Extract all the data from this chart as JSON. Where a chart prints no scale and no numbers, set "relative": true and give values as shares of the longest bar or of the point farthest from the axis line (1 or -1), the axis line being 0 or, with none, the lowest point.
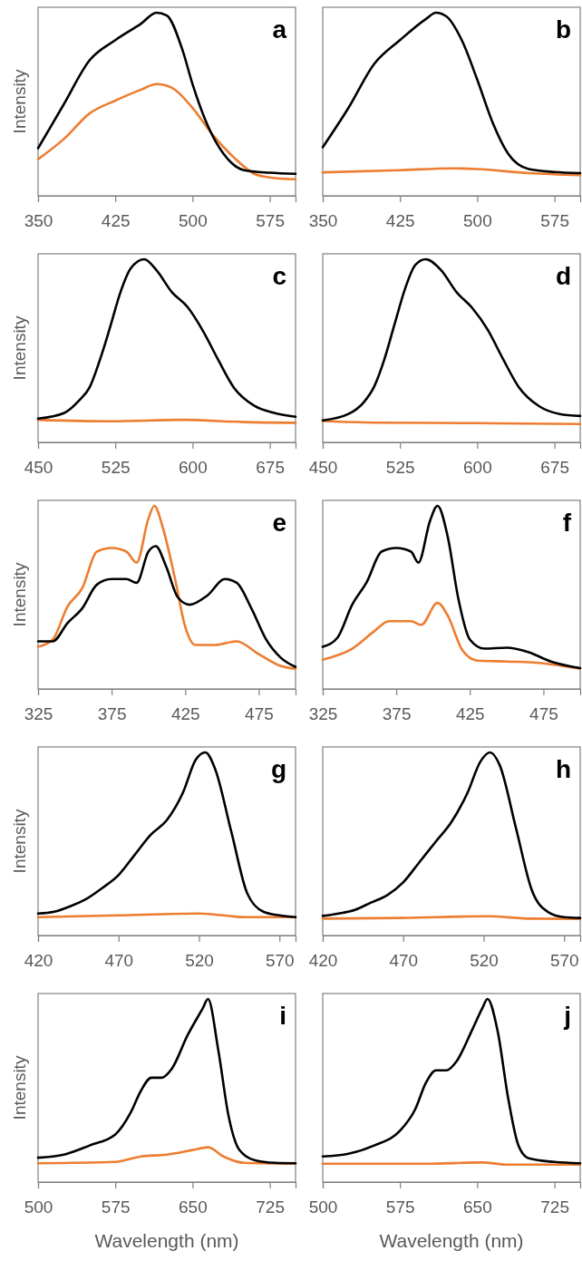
{
  "chart_data": [
    {
      "type": "line",
      "title": "a",
      "ylabel": "Intensity",
      "relative": true,
      "tick_labels": "x",
      "xlim": [
        350,
        600
      ],
      "xticks": [
        350,
        425,
        500,
        575
      ],
      "series": [
        {
          "color": "#000000",
          "x": [
            350,
            375,
            400,
            425,
            450,
            465,
            475,
            490,
            500,
            515,
            530,
            550,
            575,
            600
          ],
          "values": [
            0.26,
            0.5,
            0.74,
            0.85,
            0.94,
            1,
            0.985,
            0.8,
            0.61,
            0.38,
            0.23,
            0.14,
            0.126,
            0.12
          ]
        },
        {
          "color": "#ed7d31",
          "x": [
            350,
            375,
            400,
            425,
            450,
            465,
            480,
            500,
            520,
            540,
            560,
            575,
            600
          ],
          "values": [
            0.2,
            0.31,
            0.45,
            0.52,
            0.58,
            0.61,
            0.59,
            0.48,
            0.33,
            0.21,
            0.12,
            0.1,
            0.09
          ]
        }
      ]
    },
    {
      "type": "line",
      "title": "b",
      "relative": true,
      "tick_labels": "x",
      "xlim": [
        350,
        600
      ],
      "xticks": [
        350,
        425,
        500,
        575
      ],
      "series": [
        {
          "color": "#000000",
          "x": [
            350,
            375,
            400,
            425,
            450,
            460,
            470,
            485,
            500,
            515,
            530,
            550,
            575,
            600
          ],
          "values": [
            0.265,
            0.48,
            0.72,
            0.85,
            0.965,
            1,
            0.98,
            0.85,
            0.635,
            0.4,
            0.23,
            0.146,
            0.13,
            0.124
          ]
        },
        {
          "color": "#ed7d31",
          "x": [
            350,
            425,
            475,
            500,
            550,
            600
          ],
          "values": [
            0.128,
            0.14,
            0.15,
            0.146,
            0.124,
            0.113
          ]
        }
      ]
    },
    {
      "type": "line",
      "title": "c",
      "ylabel": "Intensity",
      "relative": true,
      "tick_labels": "x",
      "xlim": [
        450,
        700
      ],
      "xticks": [
        450,
        525,
        600,
        675
      ],
      "series": [
        {
          "color": "#000000",
          "x": [
            450,
            475,
            490,
            500,
            510,
            520,
            530,
            540,
            553,
            565,
            580,
            595,
            610,
            625,
            640,
            660,
            680,
            700
          ],
          "values": [
            0.13,
            0.16,
            0.23,
            0.3,
            0.45,
            0.63,
            0.82,
            0.95,
            1,
            0.94,
            0.82,
            0.74,
            0.61,
            0.45,
            0.3,
            0.2,
            0.16,
            0.14
          ]
        },
        {
          "color": "#ed7d31",
          "x": [
            450,
            520,
            590,
            650,
            700
          ],
          "values": [
            0.123,
            0.115,
            0.123,
            0.111,
            0.107
          ]
        }
      ]
    },
    {
      "type": "line",
      "title": "d",
      "relative": true,
      "tick_labels": "x",
      "xlim": [
        450,
        700
      ],
      "xticks": [
        450,
        525,
        600,
        675
      ],
      "series": [
        {
          "color": "#000000",
          "x": [
            450,
            475,
            490,
            500,
            510,
            520,
            530,
            540,
            550,
            565,
            580,
            595,
            610,
            625,
            640,
            660,
            680,
            700
          ],
          "values": [
            0.12,
            0.155,
            0.22,
            0.305,
            0.456,
            0.65,
            0.84,
            0.97,
            1,
            0.94,
            0.82,
            0.735,
            0.617,
            0.456,
            0.305,
            0.198,
            0.155,
            0.144
          ]
        },
        {
          "color": "#ed7d31",
          "x": [
            450,
            500,
            600,
            700
          ],
          "values": [
            0.116,
            0.108,
            0.105,
            0.1
          ]
        }
      ]
    },
    {
      "type": "line",
      "title": "e",
      "ylabel": "Intensity",
      "relative": true,
      "tick_labels": "x",
      "xlim": [
        325,
        500
      ],
      "xticks": [
        325,
        375,
        425,
        475
      ],
      "series": [
        {
          "color": "#000000",
          "x": [
            325,
            335,
            345,
            355,
            365,
            375,
            385,
            392,
            400,
            405,
            412,
            420,
            428,
            440,
            452,
            460,
            470,
            480,
            490,
            500
          ],
          "values": [
            0.26,
            0.26,
            0.36,
            0.44,
            0.57,
            0.6,
            0.6,
            0.58,
            0.75,
            0.78,
            0.67,
            0.5,
            0.46,
            0.51,
            0.6,
            0.58,
            0.44,
            0.27,
            0.17,
            0.12
          ]
        },
        {
          "color": "#ed7d31",
          "x": [
            325,
            335,
            345,
            355,
            365,
            375,
            385,
            392,
            400,
            404,
            410,
            418,
            425,
            432,
            445,
            460,
            475,
            490,
            500
          ],
          "values": [
            0.23,
            0.27,
            0.45,
            0.55,
            0.75,
            0.77,
            0.75,
            0.69,
            0.93,
            1,
            0.875,
            0.605,
            0.34,
            0.24,
            0.24,
            0.26,
            0.19,
            0.125,
            0.11
          ]
        }
      ]
    },
    {
      "type": "line",
      "title": "f",
      "relative": true,
      "tick_labels": "x",
      "xlim": [
        325,
        500
      ],
      "xticks": [
        325,
        375,
        425,
        475
      ],
      "series": [
        {
          "color": "#000000",
          "x": [
            325,
            335,
            345,
            355,
            365,
            375,
            385,
            390,
            398,
            403,
            410,
            417,
            425,
            435,
            450,
            465,
            480,
            500
          ],
          "values": [
            0.23,
            0.28,
            0.46,
            0.585,
            0.75,
            0.77,
            0.75,
            0.69,
            0.92,
            1,
            0.83,
            0.5,
            0.27,
            0.22,
            0.225,
            0.2,
            0.15,
            0.114
          ]
        },
        {
          "color": "#ed7d31",
          "x": [
            325,
            345,
            360,
            370,
            385,
            392,
            403,
            410,
            420,
            430,
            450,
            475,
            500
          ],
          "values": [
            0.16,
            0.22,
            0.315,
            0.37,
            0.37,
            0.35,
            0.47,
            0.4,
            0.21,
            0.155,
            0.15,
            0.14,
            0.11
          ]
        }
      ]
    },
    {
      "type": "line",
      "title": "g",
      "ylabel": "Intensity",
      "relative": true,
      "tick_labels": "x",
      "xlim": [
        420,
        580
      ],
      "xticks": [
        420,
        470,
        520,
        570
      ],
      "series": [
        {
          "color": "#000000",
          "x": [
            420,
            430,
            440,
            450,
            460,
            470,
            480,
            490,
            500,
            510,
            518,
            524,
            530,
            540,
            550,
            560,
            570,
            580
          ],
          "values": [
            0.12,
            0.13,
            0.16,
            0.2,
            0.26,
            0.33,
            0.44,
            0.55,
            0.63,
            0.78,
            0.96,
            1,
            0.91,
            0.57,
            0.23,
            0.13,
            0.11,
            0.1
          ]
        },
        {
          "color": "#ed7d31",
          "x": [
            420,
            470,
            520,
            550,
            580
          ],
          "values": [
            0.1,
            0.11,
            0.12,
            0.1,
            0.1
          ]
        }
      ]
    },
    {
      "type": "line",
      "title": "h",
      "relative": true,
      "tick_labels": "x",
      "xlim": [
        420,
        580
      ],
      "xticks": [
        420,
        470,
        520,
        570
      ],
      "series": [
        {
          "color": "#000000",
          "x": [
            420,
            430,
            440,
            450,
            460,
            470,
            480,
            490,
            500,
            510,
            518,
            524,
            530,
            540,
            550,
            560,
            570,
            580
          ],
          "values": [
            0.107,
            0.12,
            0.14,
            0.18,
            0.22,
            0.29,
            0.4,
            0.51,
            0.62,
            0.78,
            0.95,
            1,
            0.93,
            0.59,
            0.246,
            0.128,
            0.1,
            0.096
          ]
        },
        {
          "color": "#ed7d31",
          "x": [
            420,
            470,
            522,
            550,
            580
          ],
          "values": [
            0.092,
            0.096,
            0.105,
            0.092,
            0.09
          ]
        }
      ]
    },
    {
      "type": "line",
      "title": "i",
      "ylabel": "Intensity",
      "xlabel": "Wavelength (nm)",
      "relative": true,
      "tick_labels": "x",
      "xlim": [
        500,
        750
      ],
      "xticks": [
        500,
        575,
        650,
        725
      ],
      "series": [
        {
          "color": "#000000",
          "x": [
            500,
            525,
            550,
            575,
            590,
            600,
            610,
            620,
            630,
            645,
            660,
            665,
            675,
            685,
            695,
            710,
            730,
            750
          ],
          "values": [
            0.133,
            0.15,
            0.2,
            0.26,
            0.38,
            0.5,
            0.57,
            0.57,
            0.62,
            0.8,
            0.95,
            1,
            0.72,
            0.36,
            0.18,
            0.12,
            0.105,
            0.103
          ]
        },
        {
          "color": "#ed7d31",
          "x": [
            500,
            575,
            600,
            625,
            650,
            665,
            680,
            700,
            750
          ],
          "values": [
            0.103,
            0.11,
            0.14,
            0.15,
            0.175,
            0.19,
            0.14,
            0.105,
            0.1
          ]
        }
      ]
    },
    {
      "type": "line",
      "title": "j",
      "xlabel": "Wavelength (nm)",
      "relative": true,
      "tick_labels": "x",
      "xlim": [
        500,
        750
      ],
      "xticks": [
        500,
        575,
        650,
        725
      ],
      "series": [
        {
          "color": "#000000",
          "x": [
            500,
            525,
            550,
            575,
            590,
            600,
            610,
            620,
            630,
            645,
            655,
            660,
            670,
            680,
            690,
            700,
            725,
            750
          ],
          "values": [
            0.14,
            0.155,
            0.2,
            0.28,
            0.4,
            0.54,
            0.61,
            0.61,
            0.66,
            0.83,
            0.95,
            1,
            0.82,
            0.46,
            0.2,
            0.13,
            0.11,
            0.103
          ]
        },
        {
          "color": "#ed7d31",
          "x": [
            500,
            600,
            655,
            680,
            750
          ],
          "values": [
            0.1,
            0.1,
            0.107,
            0.095,
            0.095
          ]
        }
      ]
    }
  ]
}
